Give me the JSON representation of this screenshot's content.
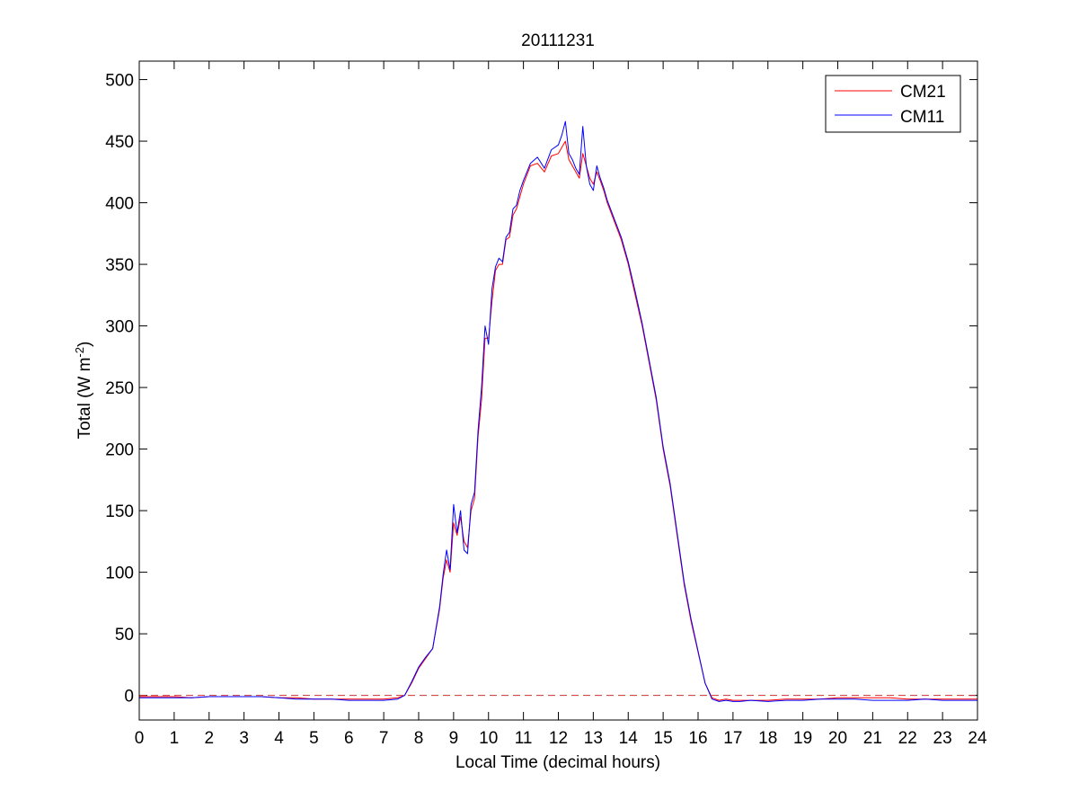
{
  "chart_data": {
    "type": "line",
    "title": "20111231",
    "xlabel": "Local Time (decimal hours)",
    "ylabel": "Total (W m",
    "ylabel_exponent": "-2",
    "ylabel_close": ")",
    "xlim": [
      0,
      24
    ],
    "ylim": [
      -20,
      515
    ],
    "x_ticks": [
      0,
      1,
      2,
      3,
      4,
      5,
      6,
      7,
      8,
      9,
      10,
      11,
      12,
      13,
      14,
      15,
      16,
      17,
      18,
      19,
      20,
      21,
      22,
      23,
      24
    ],
    "y_ticks": [
      0,
      50,
      100,
      150,
      200,
      250,
      300,
      350,
      400,
      450,
      500
    ],
    "grid": false,
    "legend_position": "top-right",
    "reference_line": {
      "y": 0,
      "style": "dashed",
      "color": "#cc3333"
    },
    "series": [
      {
        "name": "CM21",
        "color": "#ff0000",
        "x": [
          0,
          0.5,
          1,
          1.5,
          2,
          2.5,
          3,
          3.5,
          4,
          4.5,
          5,
          5.5,
          6,
          6.5,
          7,
          7.4,
          7.6,
          7.8,
          8,
          8.2,
          8.4,
          8.6,
          8.7,
          8.8,
          8.9,
          9,
          9.1,
          9.2,
          9.3,
          9.4,
          9.5,
          9.6,
          9.7,
          9.8,
          9.9,
          10,
          10.1,
          10.2,
          10.3,
          10.4,
          10.5,
          10.6,
          10.7,
          10.8,
          10.9,
          11,
          11.2,
          11.4,
          11.6,
          11.8,
          12,
          12.1,
          12.2,
          12.3,
          12.4,
          12.5,
          12.6,
          12.7,
          12.8,
          12.9,
          13,
          13.1,
          13.2,
          13.3,
          13.4,
          13.6,
          13.8,
          14,
          14.2,
          14.4,
          14.6,
          14.8,
          15,
          15.2,
          15.4,
          15.6,
          15.8,
          16,
          16.2,
          16.4,
          16.6,
          16.8,
          17,
          17.2,
          17.5,
          18,
          18.5,
          19,
          19.5,
          20,
          20.5,
          21,
          21.5,
          22,
          22.5,
          23,
          23.5,
          24
        ],
        "y": [
          -1,
          -1,
          -1,
          -2,
          -1,
          -1,
          -1,
          -1,
          -2,
          -2,
          -3,
          -3,
          -3,
          -3,
          -3,
          -2,
          0,
          10,
          22,
          30,
          38,
          70,
          95,
          110,
          100,
          140,
          130,
          145,
          125,
          120,
          150,
          160,
          210,
          240,
          290,
          290,
          320,
          345,
          350,
          350,
          370,
          372,
          390,
          395,
          405,
          415,
          430,
          432,
          425,
          438,
          440,
          445,
          450,
          435,
          430,
          425,
          420,
          440,
          430,
          420,
          415,
          425,
          418,
          410,
          400,
          385,
          370,
          350,
          325,
          300,
          270,
          240,
          200,
          170,
          130,
          90,
          60,
          35,
          10,
          -2,
          -4,
          -3,
          -4,
          -4,
          -4,
          -4,
          -3,
          -3,
          -3,
          -2,
          -2,
          -2,
          -2,
          -3,
          -3,
          -3,
          -3,
          -3
        ],
        "y_override_note": ""
      },
      {
        "name": "CM11",
        "color": "#0000ff",
        "x": [
          0,
          0.5,
          1,
          1.5,
          2,
          2.5,
          3,
          3.5,
          4,
          4.5,
          5,
          5.5,
          6,
          6.5,
          7,
          7.4,
          7.6,
          7.8,
          8,
          8.2,
          8.4,
          8.6,
          8.7,
          8.8,
          8.9,
          9,
          9.1,
          9.2,
          9.3,
          9.4,
          9.5,
          9.6,
          9.7,
          9.8,
          9.9,
          10,
          10.1,
          10.2,
          10.3,
          10.4,
          10.5,
          10.6,
          10.7,
          10.8,
          10.9,
          11,
          11.2,
          11.4,
          11.6,
          11.8,
          12,
          12.1,
          12.2,
          12.3,
          12.4,
          12.5,
          12.6,
          12.7,
          12.8,
          12.9,
          13,
          13.1,
          13.2,
          13.3,
          13.4,
          13.6,
          13.8,
          14,
          14.2,
          14.4,
          14.6,
          14.8,
          15,
          15.2,
          15.4,
          15.6,
          15.8,
          16,
          16.2,
          16.4,
          16.6,
          16.8,
          17,
          17.2,
          17.5,
          18,
          18.5,
          19,
          19.5,
          20,
          20.5,
          21,
          21.5,
          22,
          22.5,
          23,
          23.5,
          24
        ],
        "y": [
          -2,
          -2,
          -2,
          -2,
          -1,
          -1,
          -1,
          -1,
          -2,
          -3,
          -3,
          -3,
          -4,
          -4,
          -4,
          -3,
          0,
          11,
          23,
          31,
          38,
          72,
          98,
          118,
          102,
          155,
          132,
          150,
          118,
          115,
          155,
          165,
          215,
          250,
          300,
          285,
          330,
          348,
          355,
          352,
          372,
          376,
          395,
          398,
          410,
          418,
          432,
          437,
          428,
          443,
          447,
          455,
          466,
          440,
          435,
          428,
          423,
          462,
          430,
          415,
          410,
          430,
          420,
          412,
          402,
          387,
          372,
          352,
          328,
          302,
          272,
          242,
          202,
          172,
          132,
          92,
          62,
          36,
          10,
          -3,
          -5,
          -4,
          -5,
          -5,
          -4,
          -5,
          -4,
          -4,
          -3,
          -3,
          -3,
          -4,
          -4,
          -4,
          -3,
          -4,
          -4,
          -4
        ]
      }
    ]
  }
}
